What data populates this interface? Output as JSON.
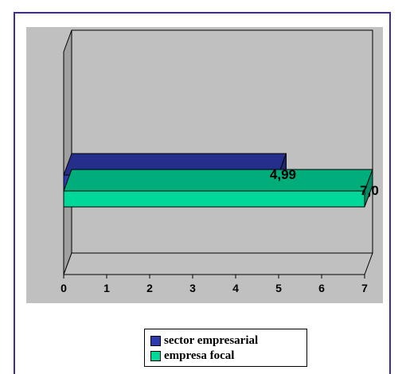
{
  "chart_data": {
    "type": "bar",
    "orientation": "horizontal",
    "three_d": true,
    "xlim": [
      0,
      7
    ],
    "ticks": [
      "0",
      "1",
      "2",
      "3",
      "4",
      "5",
      "6",
      "7"
    ],
    "grid": false,
    "legend_position": "bottom",
    "series": [
      {
        "name": "sector empresarial",
        "value": 4.99,
        "label": "4,99",
        "color": "#2e3aad"
      },
      {
        "name": "empresa focal",
        "value": 7.0,
        "label": "7,0",
        "color": "#00d89a"
      }
    ]
  },
  "colors": {
    "plot_background": "#c0c0c0",
    "frame_border": "#3a2ca0"
  }
}
